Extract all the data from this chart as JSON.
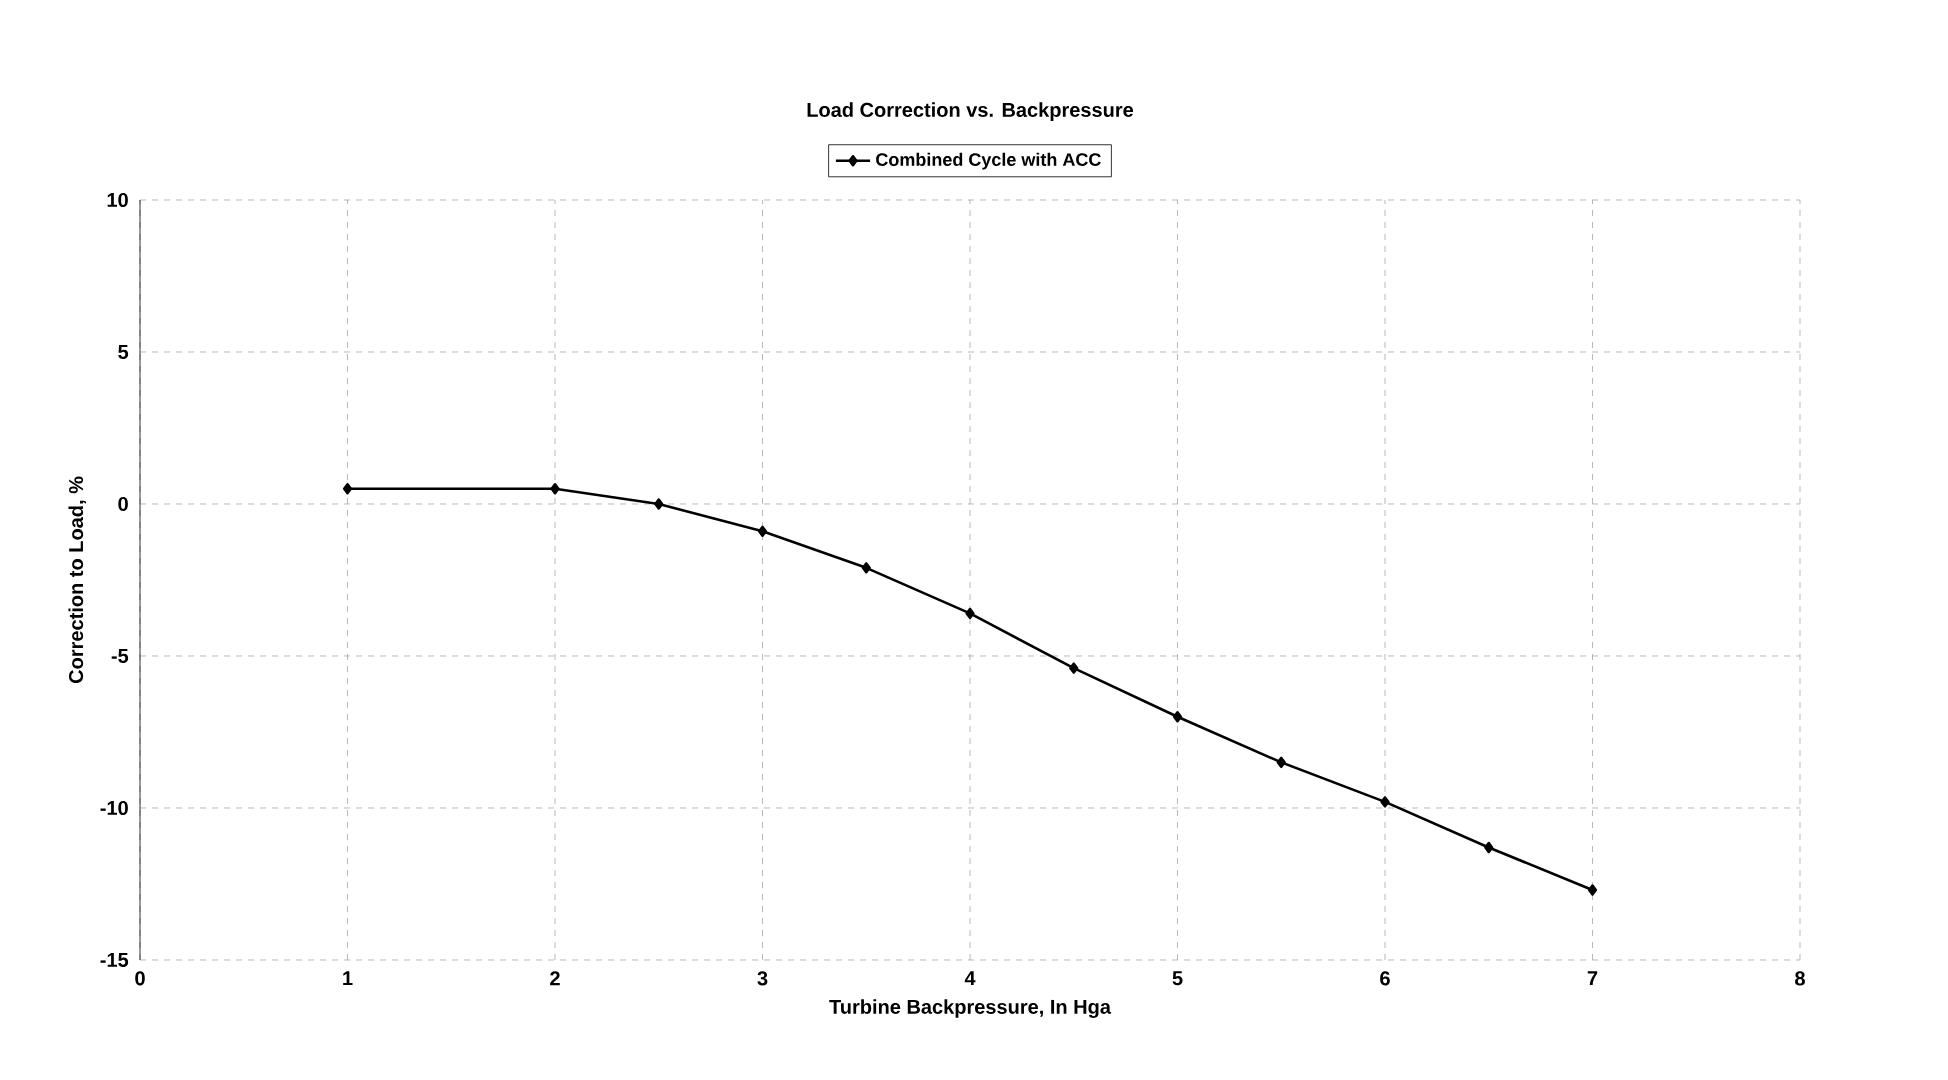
{
  "chart_data": {
    "type": "line",
    "title": "Load Correction vs. Backpressure",
    "xlabel": "Turbine Backpressure, In Hga",
    "ylabel": "Correction to Load, %",
    "x": [
      1,
      2,
      2.5,
      3,
      3.5,
      4,
      4.5,
      5,
      5.5,
      6,
      6.5,
      7
    ],
    "series": [
      {
        "name": "Combined Cycle with ACC",
        "color": "#000000",
        "values": [
          0.5,
          0.5,
          0,
          -0.9,
          -2.1,
          -3.6,
          -5.4,
          -7.0,
          -8.5,
          -9.8,
          -11.3,
          -12.7
        ]
      }
    ],
    "xlim": [
      0,
      8
    ],
    "xticks": [
      0,
      1,
      2,
      3,
      4,
      5,
      6,
      7,
      8
    ],
    "ylim": [
      -15,
      10
    ],
    "yticks": [
      -15,
      -10,
      -5,
      0,
      5,
      10
    ],
    "grid": true,
    "legend": "top",
    "marker": "diamond",
    "line_style": "solid"
  }
}
